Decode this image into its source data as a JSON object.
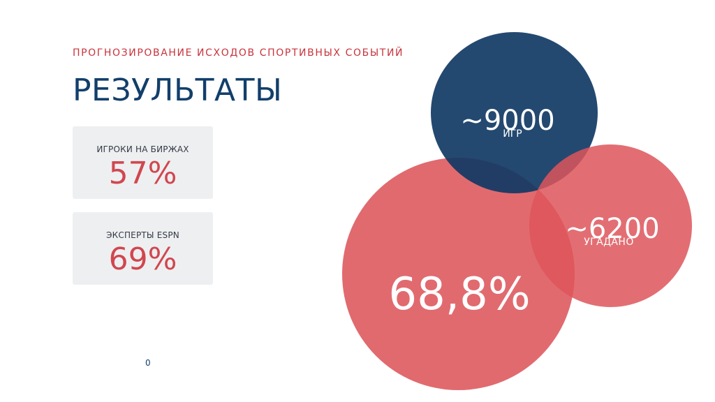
{
  "slide": {
    "subtitle": "ПРОГНОЗИРОВАНИЕ ИСХОДОВ СПОРТИВНЫХ СОБЫТИЙ",
    "title": "РЕЗУЛЬТАТЫ",
    "page_number": "0"
  },
  "stats": [
    {
      "label": "ИГРОКИ НА БИРЖАХ",
      "value": "57%"
    },
    {
      "label": "ЭКСПЕРТЫ ESPN",
      "value": "69%"
    }
  ],
  "circles": {
    "games": {
      "value": "~9000",
      "label": "ИГР",
      "color": "#123f6b"
    },
    "guessed": {
      "value": "~6200",
      "label": "УГАДАНО",
      "color": "#dd555b"
    },
    "accuracy": {
      "value": "68,8%",
      "color": "#dd555b"
    }
  },
  "colors": {
    "accent_red": "#c8333b",
    "navy": "#123f6b",
    "card_bg": "#eeeff1"
  }
}
